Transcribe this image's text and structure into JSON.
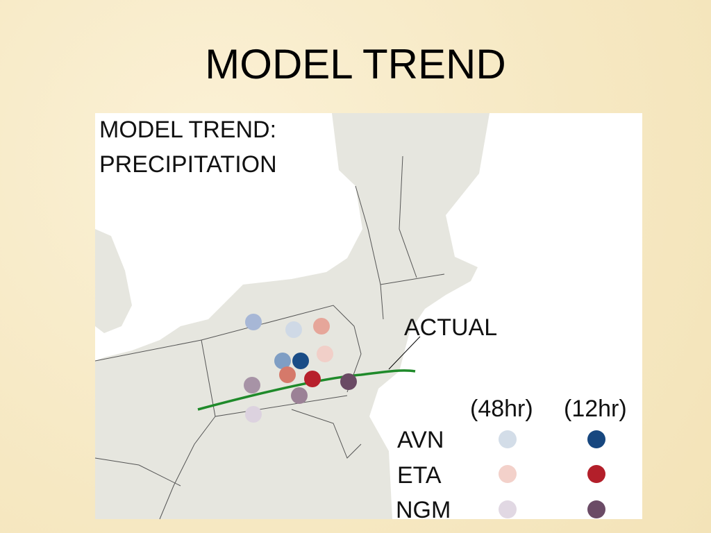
{
  "title": "MODEL TREND",
  "map": {
    "title_line1": "MODEL TREND:",
    "title_line2": "PRECIPITATION",
    "actual_label": "ACTUAL"
  },
  "legend": {
    "columns": [
      "(48hr)",
      "(12hr)"
    ],
    "rows": [
      "AVN",
      "ETA",
      "NGM"
    ]
  }
}
